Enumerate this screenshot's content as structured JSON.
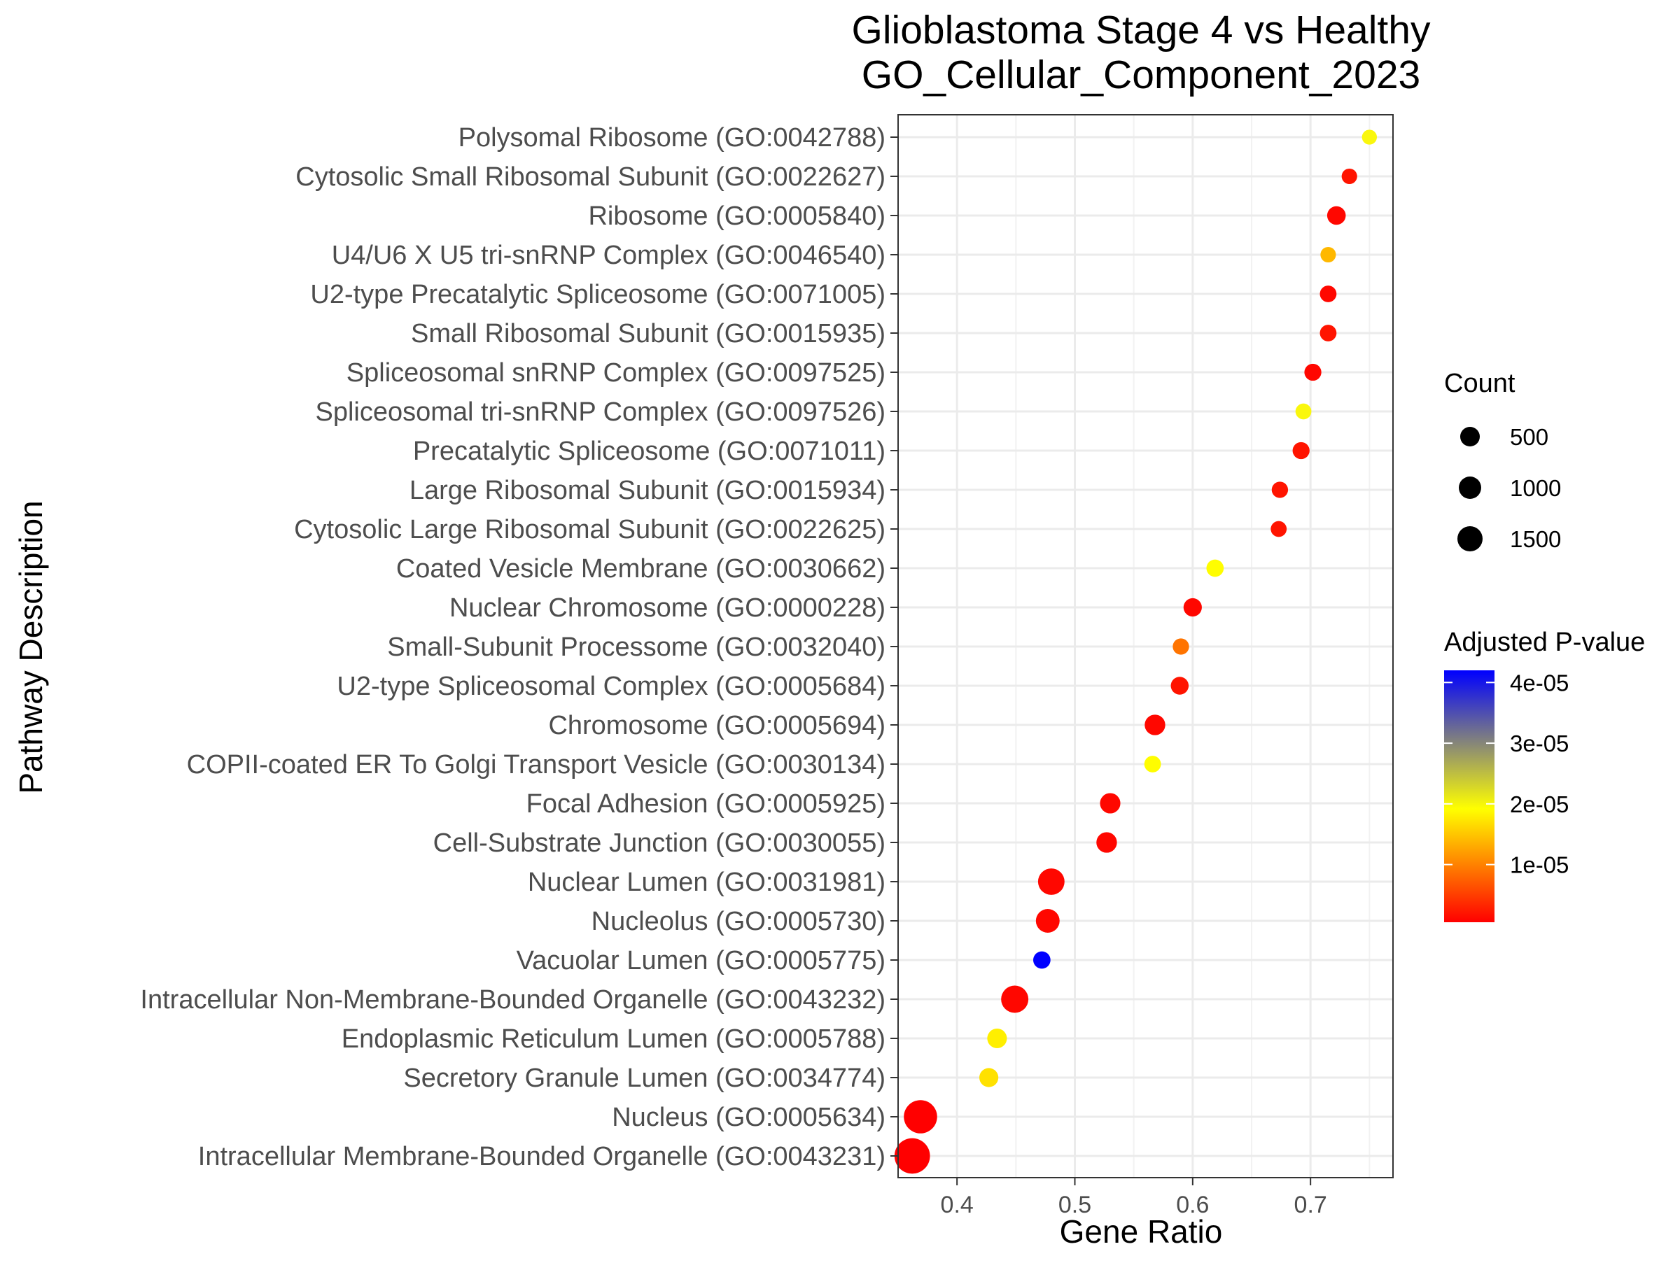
{
  "chart_data": {
    "type": "scatter",
    "title": [
      "Glioblastoma Stage 4 vs Healthy",
      "GO_Cellular_Component_2023"
    ],
    "xlabel": "Gene Ratio",
    "ylabel": "Pathway Description",
    "xlim": [
      0.35,
      0.77
    ],
    "xticks": [
      0.4,
      0.5,
      0.6,
      0.7
    ],
    "xtick_labels": [
      "0.4",
      "0.5",
      "0.6",
      "0.7"
    ],
    "grid": true,
    "legend_position": "right",
    "size_legend": {
      "title": "Count",
      "entries": [
        {
          "label": "500",
          "value": 500
        },
        {
          "label": "1000",
          "value": 1000
        },
        {
          "label": "1500",
          "value": 1500
        }
      ]
    },
    "color_legend": {
      "title": "Adjusted P-value",
      "range": [
        5e-07,
        4.2e-05
      ],
      "ticks": [
        {
          "label": "4e-05",
          "value": 4e-05
        },
        {
          "label": "3e-05",
          "value": 3e-05
        },
        {
          "label": "2e-05",
          "value": 2e-05
        },
        {
          "label": "1e-05",
          "value": 1e-05
        }
      ],
      "colors": [
        "#ff0000",
        "#ffff00",
        "#0000ff"
      ]
    },
    "points": [
      {
        "label": "Intracellular Membrane-Bounded Organelle (GO:0043231)",
        "x": 0.362,
        "count": 1900,
        "padj": 5e-07
      },
      {
        "label": "Nucleus (GO:0005634)",
        "x": 0.369,
        "count": 1550,
        "padj": 5e-07
      },
      {
        "label": "Secretory Granule Lumen (GO:0034774)",
        "x": 0.427,
        "count": 150,
        "padj": 1.7e-05
      },
      {
        "label": "Endoplasmic Reticulum Lumen (GO:0005788)",
        "x": 0.434,
        "count": 180,
        "padj": 1.8e-05
      },
      {
        "label": "Intracellular Non-Membrane-Bounded Organelle (GO:0043232)",
        "x": 0.449,
        "count": 780,
        "padj": 1e-06
      },
      {
        "label": "Vacuolar Lumen (GO:0005775)",
        "x": 0.472,
        "count": 80,
        "padj": 4.2e-05
      },
      {
        "label": "Nucleolus (GO:0005730)",
        "x": 0.477,
        "count": 450,
        "padj": 1e-06
      },
      {
        "label": "Nuclear Lumen (GO:0031981)",
        "x": 0.48,
        "count": 700,
        "padj": 1e-06
      },
      {
        "label": "Cell-Substrate Junction (GO:0030055)",
        "x": 0.527,
        "count": 230,
        "padj": 1e-06
      },
      {
        "label": "Focal Adhesion (GO:0005925)",
        "x": 0.53,
        "count": 220,
        "padj": 1e-06
      },
      {
        "label": "COPII-coated ER To Golgi Transport Vesicle (GO:0030134)",
        "x": 0.566,
        "count": 60,
        "padj": 1.9e-05
      },
      {
        "label": "Chromosome (GO:0005694)",
        "x": 0.568,
        "count": 230,
        "padj": 1e-06
      },
      {
        "label": "U2-type Spliceosomal Complex (GO:0005684)",
        "x": 0.589,
        "count": 100,
        "padj": 2e-06
      },
      {
        "label": "Small-Subunit Processome (GO:0032040)",
        "x": 0.59,
        "count": 50,
        "padj": 9e-06
      },
      {
        "label": "Nuclear Chromosome (GO:0000228)",
        "x": 0.6,
        "count": 120,
        "padj": 1e-06
      },
      {
        "label": "Coated Vesicle Membrane (GO:0030662)",
        "x": 0.619,
        "count": 80,
        "padj": 1.9e-05
      },
      {
        "label": "Cytosolic Large Ribosomal Subunit (GO:0022625)",
        "x": 0.673,
        "count": 40,
        "padj": 2e-06
      },
      {
        "label": "Large Ribosomal Subunit (GO:0015934)",
        "x": 0.674,
        "count": 50,
        "padj": 2e-06
      },
      {
        "label": "Precatalytic Spliceosome (GO:0071011)",
        "x": 0.692,
        "count": 70,
        "padj": 2e-06
      },
      {
        "label": "Spliceosomal tri-snRNP Complex (GO:0097526)",
        "x": 0.694,
        "count": 40,
        "padj": 2e-05
      },
      {
        "label": "Spliceosomal snRNP Complex (GO:0097525)",
        "x": 0.702,
        "count": 70,
        "padj": 1e-06
      },
      {
        "label": "Small Ribosomal Subunit (GO:0015935)",
        "x": 0.715,
        "count": 60,
        "padj": 2e-06
      },
      {
        "label": "U2-type Precatalytic Spliceosome (GO:0071005)",
        "x": 0.715,
        "count": 60,
        "padj": 1e-06
      },
      {
        "label": "U4/U6 X U5 tri-snRNP Complex (GO:0046540)",
        "x": 0.715,
        "count": 30,
        "padj": 1.4e-05
      },
      {
        "label": "Ribosome (GO:0005840)",
        "x": 0.722,
        "count": 130,
        "padj": 1e-06
      },
      {
        "label": "Cytosolic Small Ribosomal Subunit (GO:0022627)",
        "x": 0.733,
        "count": 30,
        "padj": 2e-06
      },
      {
        "label": "Polysomal Ribosome (GO:0042788)",
        "x": 0.75,
        "count": 20,
        "padj": 2e-05
      }
    ]
  }
}
